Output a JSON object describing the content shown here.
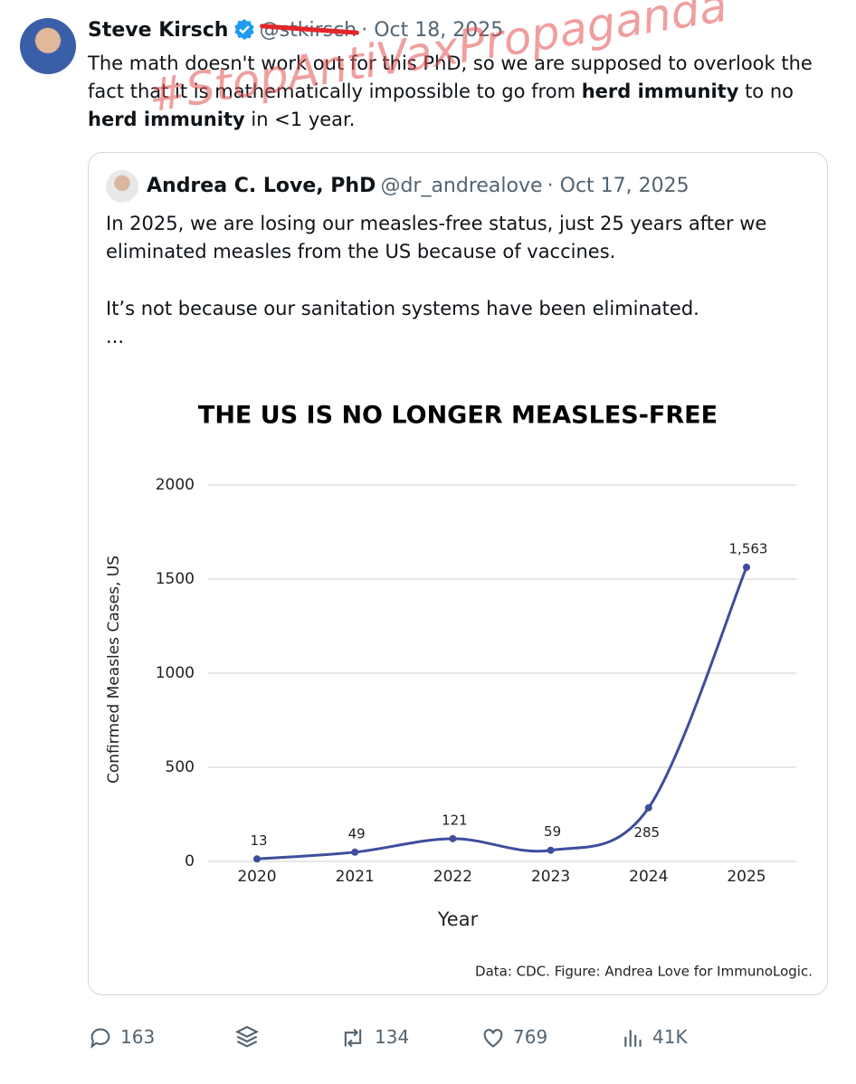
{
  "tweet": {
    "author": "Steve Kirsch",
    "handle": "@stkirsch",
    "date": "· Oct 18, 2025",
    "text": [
      {
        "text": "The math doesn't work out for this PhD, so we are supposed to overlook the fact that it is mathematically impossible to go from ",
        "bold": false
      },
      {
        "text": "herd immunity",
        "bold": true
      },
      {
        "text": " to no ",
        "bold": false
      },
      {
        "text": "herd immunity",
        "bold": true
      },
      {
        "text": " in <1 year.",
        "bold": false
      }
    ],
    "watermark": "#StopAntiVaxPropaganda"
  },
  "quote": {
    "author": "Andrea C. Love, PhD",
    "handle": "@dr_andrealove",
    "date": "· Oct 17, 2025",
    "paragraphs": [
      "In 2025, we are losing our measles-free status, just 25 years after we eliminated measles from the US because of vaccines.",
      "It’s not because our sanitation systems have been eliminated.",
      "..."
    ]
  },
  "chart_data": {
    "type": "line",
    "title": "THE US IS NO LONGER MEASLES-FREE",
    "x_label": "Year",
    "y_label": "Confirmed Measles Cases, US",
    "categories": [
      "2020",
      "2021",
      "2022",
      "2023",
      "2024",
      "2025"
    ],
    "values": [
      13,
      49,
      121,
      59,
      285,
      1563
    ],
    "value_labels": [
      "13",
      "49",
      "121",
      "59",
      "285",
      "1,563"
    ],
    "color": "#3f4d9c",
    "ylim": [
      0,
      2000
    ],
    "yticks": [
      0,
      500,
      1000,
      1500,
      2000
    ],
    "grid": true,
    "source": "Data: CDC. Figure: Andrea Love for ImmunoLogic."
  },
  "actions": {
    "replies": "163",
    "reposts": "134",
    "likes": "769",
    "views": "41K"
  }
}
